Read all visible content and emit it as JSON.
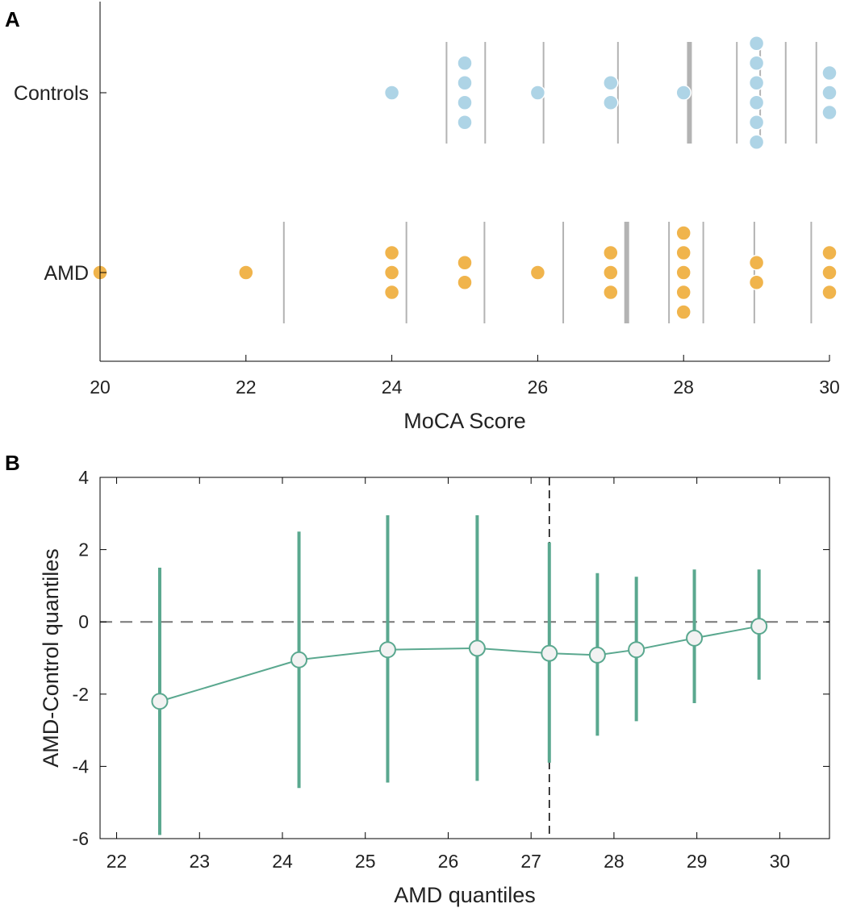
{
  "chart_data": [
    {
      "panel": "A",
      "type": "scatter",
      "xlabel": "MoCA Score",
      "xlim": [
        20,
        30
      ],
      "xticks": [
        20,
        22,
        24,
        26,
        28,
        30
      ],
      "categories": [
        "Controls",
        "AMD"
      ],
      "colors": {
        "Controls": "#aed4e6",
        "AMD": "#f0b44c",
        "quantile_line": "#b3b3b3"
      },
      "series": [
        {
          "name": "Controls",
          "values": [
            24,
            25,
            25,
            25,
            25,
            26,
            27,
            27,
            28,
            29,
            29,
            29,
            29,
            29,
            29,
            30,
            30,
            30
          ]
        },
        {
          "name": "AMD",
          "values": [
            20,
            22,
            24,
            24,
            24,
            25,
            25,
            26,
            27,
            27,
            27,
            28,
            28,
            28,
            28,
            28,
            29,
            29,
            30,
            30,
            30
          ]
        }
      ],
      "deciles": {
        "Controls": [
          24.75,
          25.28,
          26.08,
          27.1,
          28.08,
          28.73,
          29.05,
          29.4,
          29.82
        ],
        "AMD": [
          22.52,
          24.2,
          25.27,
          26.35,
          27.22,
          27.8,
          28.27,
          28.97,
          29.75
        ]
      },
      "median_index": 4
    },
    {
      "panel": "B",
      "type": "line",
      "xlabel": "AMD quantiles",
      "ylabel": "AMD-Control quantiles",
      "xlim": [
        21.8,
        30.6
      ],
      "ylim": [
        -6,
        4
      ],
      "xticks": [
        22,
        23,
        24,
        25,
        26,
        27,
        28,
        29,
        30
      ],
      "yticks": [
        -6,
        -4,
        -2,
        0,
        2,
        4
      ],
      "color": "#5aa88f",
      "x": [
        22.52,
        24.2,
        25.27,
        26.35,
        27.22,
        27.8,
        28.27,
        28.97,
        29.75
      ],
      "y": [
        -2.2,
        -1.05,
        -0.77,
        -0.73,
        -0.87,
        -0.92,
        -0.77,
        -0.45,
        -0.12
      ],
      "ci_low": [
        -5.9,
        -4.6,
        -4.45,
        -4.4,
        -3.9,
        -3.15,
        -2.75,
        -2.25,
        -1.6
      ],
      "ci_high": [
        1.5,
        2.5,
        2.95,
        2.95,
        2.2,
        1.35,
        1.25,
        1.45,
        1.45
      ],
      "median_x": 27.22,
      "reference_y": 0
    }
  ]
}
